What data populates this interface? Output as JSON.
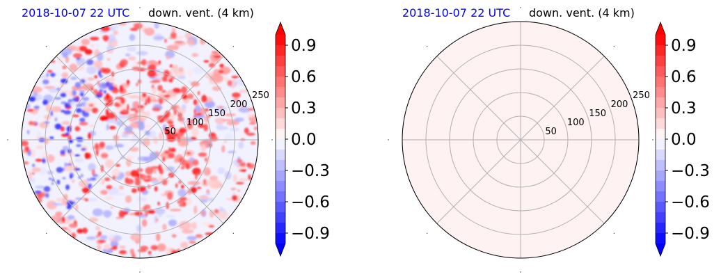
{
  "colors": {
    "negative": "#0000ff",
    "neutral": "#ffffff",
    "positive": "#ff0000",
    "grid": "#b0b0b0",
    "title_time": "#0000ff"
  },
  "colorbar": {
    "ticks": [
      "0.9",
      "0.6",
      "0.3",
      "0.0",
      "−0.3",
      "−0.6",
      "−0.9"
    ],
    "tick_values": [
      0.9,
      0.6,
      0.3,
      0.0,
      -0.3,
      -0.6,
      -0.9
    ],
    "vmin": -1.0,
    "vmax": 1.0,
    "levels": 20,
    "extend": "both"
  },
  "chart_data": [
    {
      "type": "heatmap",
      "projection": "polar",
      "title_left": "2018-10-07 22 UTC",
      "title_right": "down. vent. (4 km)",
      "radial_ticks": [
        "50",
        "100",
        "150",
        "200",
        "250"
      ],
      "radial_values": [
        50,
        100,
        150,
        200,
        250
      ],
      "rmax": 250,
      "azimuth_grid_deg": [
        0,
        45,
        90,
        135,
        180,
        225,
        270,
        315
      ],
      "field": "mixed positive (red) and negative (blue) values; strongest positive band between 100 and 200",
      "background_value": 0.0
    },
    {
      "type": "heatmap",
      "projection": "polar",
      "title_left": "2018-10-07 22 UTC",
      "title_right": "down. vent. (4 km)",
      "radial_ticks": [
        "50",
        "100",
        "150",
        "200",
        "250"
      ],
      "radial_values": [
        50,
        100,
        150,
        200,
        250
      ],
      "rmax": 250,
      "azimuth_grid_deg": [
        0,
        45,
        90,
        135,
        180,
        225,
        270,
        315
      ],
      "field": "uniform",
      "background_value": 0.05
    }
  ]
}
